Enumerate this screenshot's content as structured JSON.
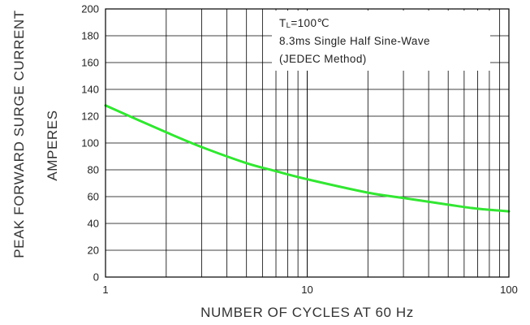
{
  "chart_data": {
    "type": "line",
    "x_scale": "log",
    "xlim": [
      1,
      100
    ],
    "ylim": [
      0,
      200
    ],
    "xlabel": "NUMBER OF CYCLES AT 60 Hz",
    "ylabel_line1": "PEAK FORWARD SURGE CURRENT",
    "ylabel_line2": "AMPERES",
    "x_ticks": [
      {
        "value": 1,
        "label": "1"
      },
      {
        "value": 10,
        "label": "10"
      },
      {
        "value": 100,
        "label": "100"
      }
    ],
    "y_ticks": [
      0,
      20,
      40,
      60,
      80,
      100,
      120,
      140,
      160,
      180,
      200
    ],
    "grid": true,
    "annotation": {
      "line1_main": "T",
      "line1_sub": "L",
      "line1_rest": "=100℃",
      "line2": "8.3ms Single Half Sine-Wave",
      "line3": "(JEDEC Method)"
    },
    "series": [
      {
        "color": "#33e633",
        "x": [
          1,
          2,
          3,
          5,
          7,
          10,
          20,
          30,
          50,
          70,
          100
        ],
        "y": [
          128,
          108,
          97,
          85,
          79,
          73,
          63,
          59,
          54,
          51,
          49
        ]
      }
    ]
  }
}
